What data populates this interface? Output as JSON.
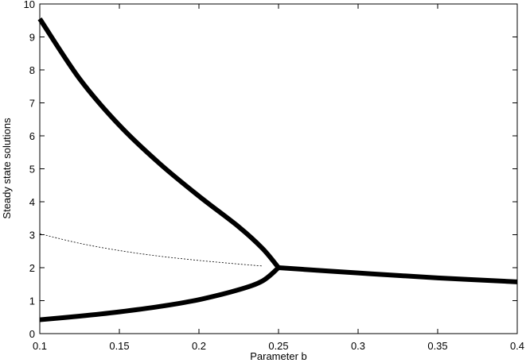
{
  "chart_data": {
    "type": "line",
    "title": "",
    "xlabel": "Parameter b",
    "ylabel": "Steady state solutions",
    "xlim": [
      0.1,
      0.4
    ],
    "ylim": [
      0,
      10
    ],
    "x_ticks": [
      "0.1",
      "0.15",
      "0.2",
      "0.25",
      "0.3",
      "0.35",
      "0.4"
    ],
    "y_ticks": [
      "0",
      "1",
      "2",
      "3",
      "4",
      "5",
      "6",
      "7",
      "8",
      "9",
      "10"
    ],
    "grid": false,
    "legend": "none",
    "series": [
      {
        "style": "thick-solid",
        "color": "#000000",
        "x": [
          0.1,
          0.125,
          0.15,
          0.175,
          0.2,
          0.225,
          0.24,
          0.25
        ],
        "y": [
          9.55,
          7.73,
          6.32,
          5.17,
          4.17,
          3.24,
          2.58,
          2.0
        ]
      },
      {
        "style": "thick-solid",
        "color": "#000000",
        "x": [
          0.1,
          0.125,
          0.15,
          0.175,
          0.2,
          0.225,
          0.24,
          0.25
        ],
        "y": [
          0.42,
          0.53,
          0.66,
          0.82,
          1.03,
          1.33,
          1.6,
          2.0
        ]
      },
      {
        "style": "thin-dashed",
        "color": "#000000",
        "x": [
          0.1,
          0.125,
          0.15,
          0.175,
          0.2,
          0.225,
          0.24
        ],
        "y": [
          3.03,
          2.74,
          2.52,
          2.35,
          2.22,
          2.11,
          2.05
        ]
      },
      {
        "style": "thick-solid",
        "color": "#000000",
        "x": [
          0.25,
          0.3,
          0.35,
          0.4
        ],
        "y": [
          2.0,
          1.84,
          1.69,
          1.57
        ]
      }
    ]
  }
}
